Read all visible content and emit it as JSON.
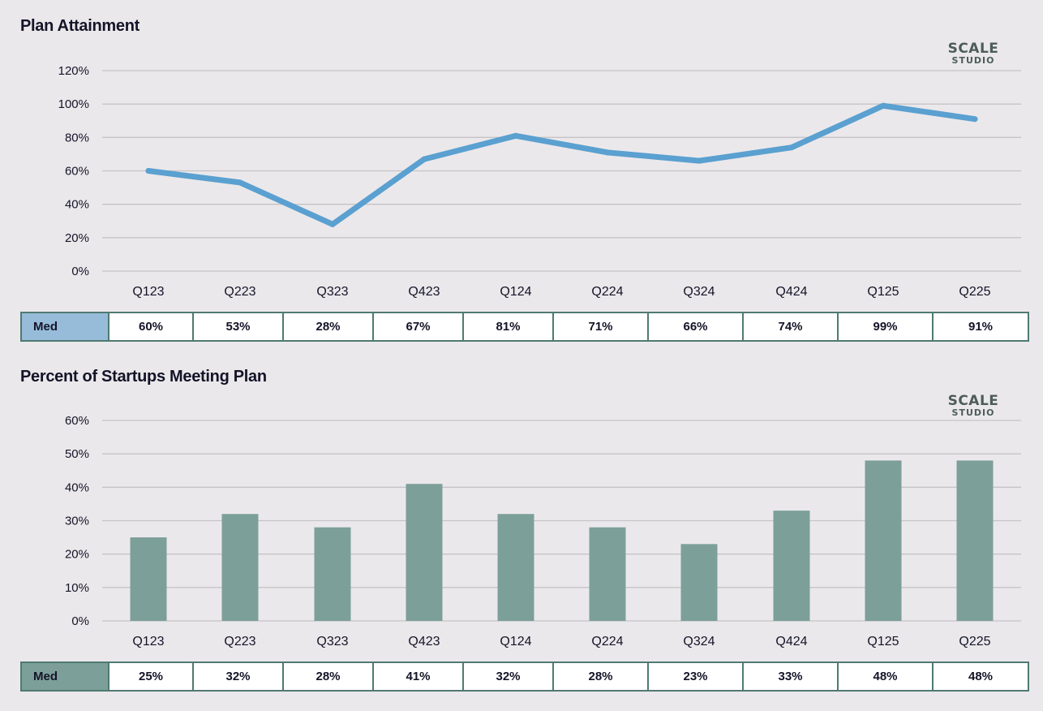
{
  "colors": {
    "line": "#5aa0d0",
    "bar": "#7c9f99",
    "grid": "#c6c3c6",
    "table1_head": "#97bcd9",
    "table2_head": "#7c9f99"
  },
  "logo": {
    "line1": "SCALE",
    "line2": "STUDIO"
  },
  "chart_data": [
    {
      "type": "line",
      "title": "Plan Attainment",
      "categories": [
        "Q123",
        "Q223",
        "Q323",
        "Q423",
        "Q124",
        "Q224",
        "Q324",
        "Q424",
        "Q125",
        "Q225"
      ],
      "values": [
        60,
        53,
        28,
        67,
        81,
        71,
        66,
        74,
        99,
        91
      ],
      "ylim": [
        0,
        120
      ],
      "yticks": [
        "0%",
        "20%",
        "40%",
        "60%",
        "80%",
        "100%",
        "120%"
      ],
      "ytick_values": [
        0,
        20,
        40,
        60,
        80,
        100,
        120
      ],
      "grid": true,
      "table": {
        "row_label": "Med",
        "cells": [
          "60%",
          "53%",
          "28%",
          "67%",
          "81%",
          "71%",
          "66%",
          "74%",
          "99%",
          "91%"
        ]
      }
    },
    {
      "type": "bar",
      "title": "Percent of Startups Meeting Plan",
      "categories": [
        "Q123",
        "Q223",
        "Q323",
        "Q423",
        "Q124",
        "Q224",
        "Q324",
        "Q424",
        "Q125",
        "Q225"
      ],
      "values": [
        25,
        32,
        28,
        41,
        32,
        28,
        23,
        33,
        48,
        48
      ],
      "ylim": [
        0,
        60
      ],
      "yticks": [
        "0%",
        "10%",
        "20%",
        "30%",
        "40%",
        "50%",
        "60%"
      ],
      "ytick_values": [
        0,
        10,
        20,
        30,
        40,
        50,
        60
      ],
      "grid": true,
      "table": {
        "row_label": "Med",
        "cells": [
          "25%",
          "32%",
          "28%",
          "41%",
          "32%",
          "28%",
          "23%",
          "33%",
          "48%",
          "48%"
        ]
      }
    }
  ]
}
